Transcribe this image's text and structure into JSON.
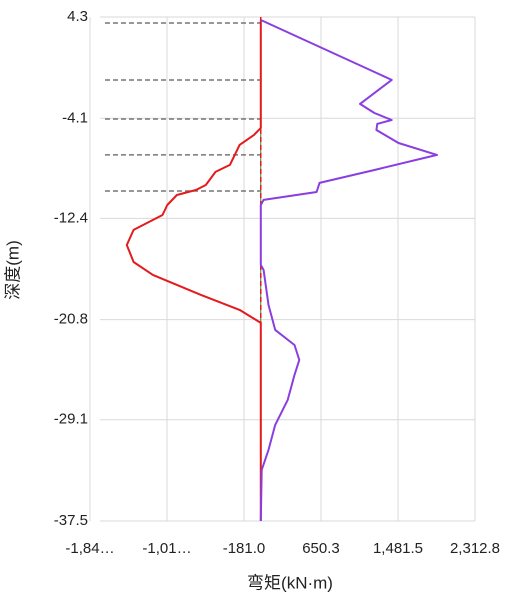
{
  "chart_data": {
    "type": "line",
    "xlabel": "弯矩(kN·m)",
    "ylabel": "深度(m)",
    "xlim": [
      -1843.6,
      2312.8
    ],
    "xticks": [
      {
        "value": -1843.6,
        "label": "-1,84…"
      },
      {
        "value": -1012.3,
        "label": "-1,01…"
      },
      {
        "value": -181.0,
        "label": "-181.0"
      },
      650.3,
      {
        "value": 1481.5,
        "label": "1,481.5"
      },
      {
        "value": 2312.8,
        "label": "2,312.8"
      }
    ],
    "ylim": [
      -37.5,
      4.3
    ],
    "yticks": [
      4.3,
      -4.1,
      -12.4,
      -20.8,
      -29.1,
      -37.5
    ],
    "grid": true,
    "support_depths": [
      3.8,
      -0.92,
      -4.16,
      -7.14,
      -10.13
    ],
    "axis_line_x": 0,
    "series": [
      {
        "color": "#e41a1c",
        "x": [
          0,
          0,
          -73,
          -229,
          -333,
          -489,
          -593,
          -697,
          -905,
          -1009,
          -1061,
          -1373,
          -1446,
          -1373,
          -1165,
          -645,
          -229,
          0,
          0
        ],
        "y": [
          4.05,
          -4.9,
          -5.48,
          -6.31,
          -7.97,
          -8.55,
          -9.63,
          -10.04,
          -10.46,
          -11.29,
          -12.12,
          -13.36,
          -14.61,
          -16.02,
          -17.09,
          -18.75,
          -19.99,
          -21.07,
          -37.5
        ]
      },
      {
        "color": "#8a3ee0",
        "x": [
          0,
          1414,
          1071,
          1227,
          1414,
          1258,
          1248,
          1487,
          1903,
          1227,
          634,
          603,
          31,
          0,
          0,
          31,
          83,
          156,
          364,
          416,
          364,
          291,
          156,
          83,
          10,
          0
        ],
        "y": [
          4.05,
          -0.92,
          -2.91,
          -3.66,
          -4.24,
          -4.57,
          -5.07,
          -6.15,
          -7.14,
          -8.39,
          -9.46,
          -10.21,
          -10.87,
          -11.29,
          -16.26,
          -16.68,
          -19.58,
          -21.65,
          -22.9,
          -24.14,
          -25.38,
          -27.46,
          -29.53,
          -31.6,
          -33.26,
          -37.5
        ]
      }
    ]
  }
}
